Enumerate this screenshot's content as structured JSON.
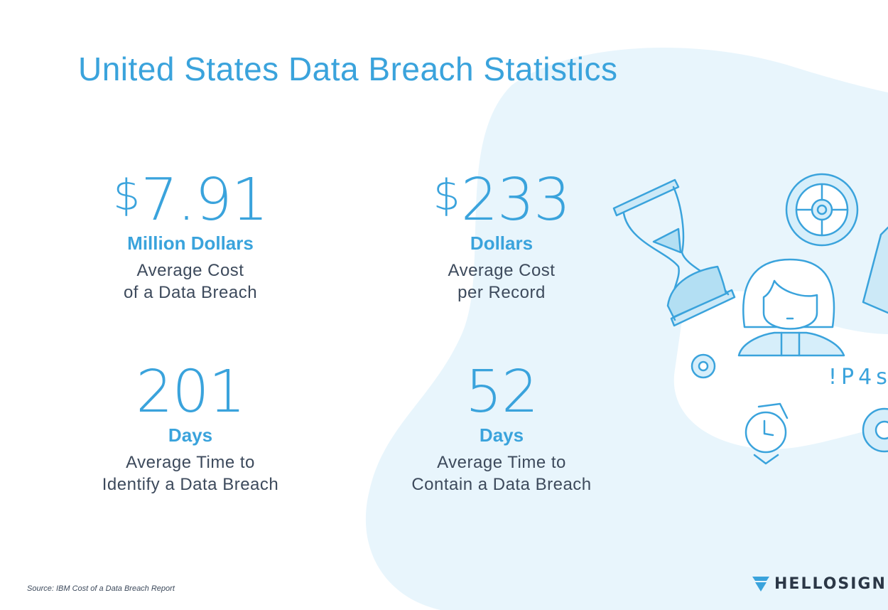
{
  "title": "United States Data Breach Statistics",
  "stats": [
    {
      "currency": "$",
      "number": "7.91",
      "unit": "Million Dollars",
      "desc_line1": "Average Cost",
      "desc_line2": "of a Data Breach"
    },
    {
      "currency": "$",
      "number": "233",
      "unit": "Dollars",
      "desc_line1": "Average Cost",
      "desc_line2": "per Record"
    },
    {
      "currency": "",
      "number": "201",
      "unit": "Days",
      "desc_line1": "Average Time to",
      "desc_line2": "Identify a Data Breach"
    },
    {
      "currency": "",
      "number": "52",
      "unit": "Days",
      "desc_line1": "Average Time to",
      "desc_line2": "Contain a Data Breach"
    }
  ],
  "illustration": {
    "password_text": "!P4s",
    "icons": [
      "hourglass-icon",
      "gear-icon",
      "person-icon",
      "watch-icon",
      "small-gear-icon",
      "device-icon"
    ]
  },
  "source": "Source: IBM Cost of a Data Breach Report",
  "brand": {
    "name": "HELLOSIGN"
  },
  "colors": {
    "accent": "#3aa3dc",
    "text": "#3d4a5c",
    "blob": "#e8f5fc",
    "brand": "#2b3746"
  }
}
